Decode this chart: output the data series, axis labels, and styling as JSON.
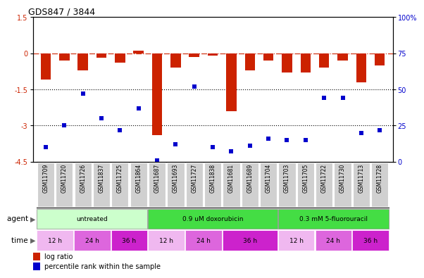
{
  "title": "GDS847 / 3844",
  "samples": [
    "GSM11709",
    "GSM11720",
    "GSM11726",
    "GSM11837",
    "GSM11725",
    "GSM11864",
    "GSM11687",
    "GSM11693",
    "GSM11727",
    "GSM11838",
    "GSM11681",
    "GSM11689",
    "GSM11704",
    "GSM11703",
    "GSM11705",
    "GSM11722",
    "GSM11730",
    "GSM11713",
    "GSM11728"
  ],
  "log_ratio": [
    -1.1,
    -0.3,
    -0.7,
    -0.2,
    -0.4,
    0.1,
    -3.4,
    -0.6,
    -0.15,
    -0.1,
    -2.4,
    -0.7,
    -0.3,
    -0.8,
    -0.8,
    -0.6,
    -0.3,
    -1.2,
    -0.5
  ],
  "percentile_rank": [
    10,
    25,
    47,
    30,
    22,
    37,
    1,
    12,
    52,
    10,
    7,
    11,
    16,
    15,
    15,
    44,
    44,
    20,
    22
  ],
  "ylim_left": [
    -4.5,
    1.5
  ],
  "ylim_right": [
    0,
    100
  ],
  "bar_color": "#cc2200",
  "scatter_color": "#0000cc",
  "bar_width": 0.55,
  "dotted_lines": [
    -1.5,
    -3.0
  ],
  "agent_defs": [
    [
      0,
      6,
      "untreated",
      "#ccffcc"
    ],
    [
      6,
      13,
      "0.9 uM doxorubicin",
      "#44dd44"
    ],
    [
      13,
      19,
      "0.3 mM 5-fluorouracil",
      "#44dd44"
    ]
  ],
  "time_defs": [
    [
      0,
      2,
      "12 h",
      "#f0b8f0"
    ],
    [
      2,
      4,
      "24 h",
      "#dd66dd"
    ],
    [
      4,
      6,
      "36 h",
      "#cc22cc"
    ],
    [
      6,
      8,
      "12 h",
      "#f0b8f0"
    ],
    [
      8,
      10,
      "24 h",
      "#dd66dd"
    ],
    [
      10,
      13,
      "36 h",
      "#cc22cc"
    ],
    [
      13,
      15,
      "12 h",
      "#f0b8f0"
    ],
    [
      15,
      17,
      "24 h",
      "#dd66dd"
    ],
    [
      17,
      19,
      "36 h",
      "#cc22cc"
    ]
  ],
  "sample_bg_color": "#d0d0d0",
  "right_yticks": [
    100,
    75,
    50,
    25,
    0
  ],
  "right_yticklabels": [
    "100%",
    "75",
    "50",
    "25",
    "0"
  ],
  "left_yticks": [
    1.5,
    0,
    -1.5,
    -3.0,
    -4.5
  ],
  "left_yticklabels": [
    "1.5",
    "0",
    "-1.5",
    "-3",
    "-4.5"
  ]
}
